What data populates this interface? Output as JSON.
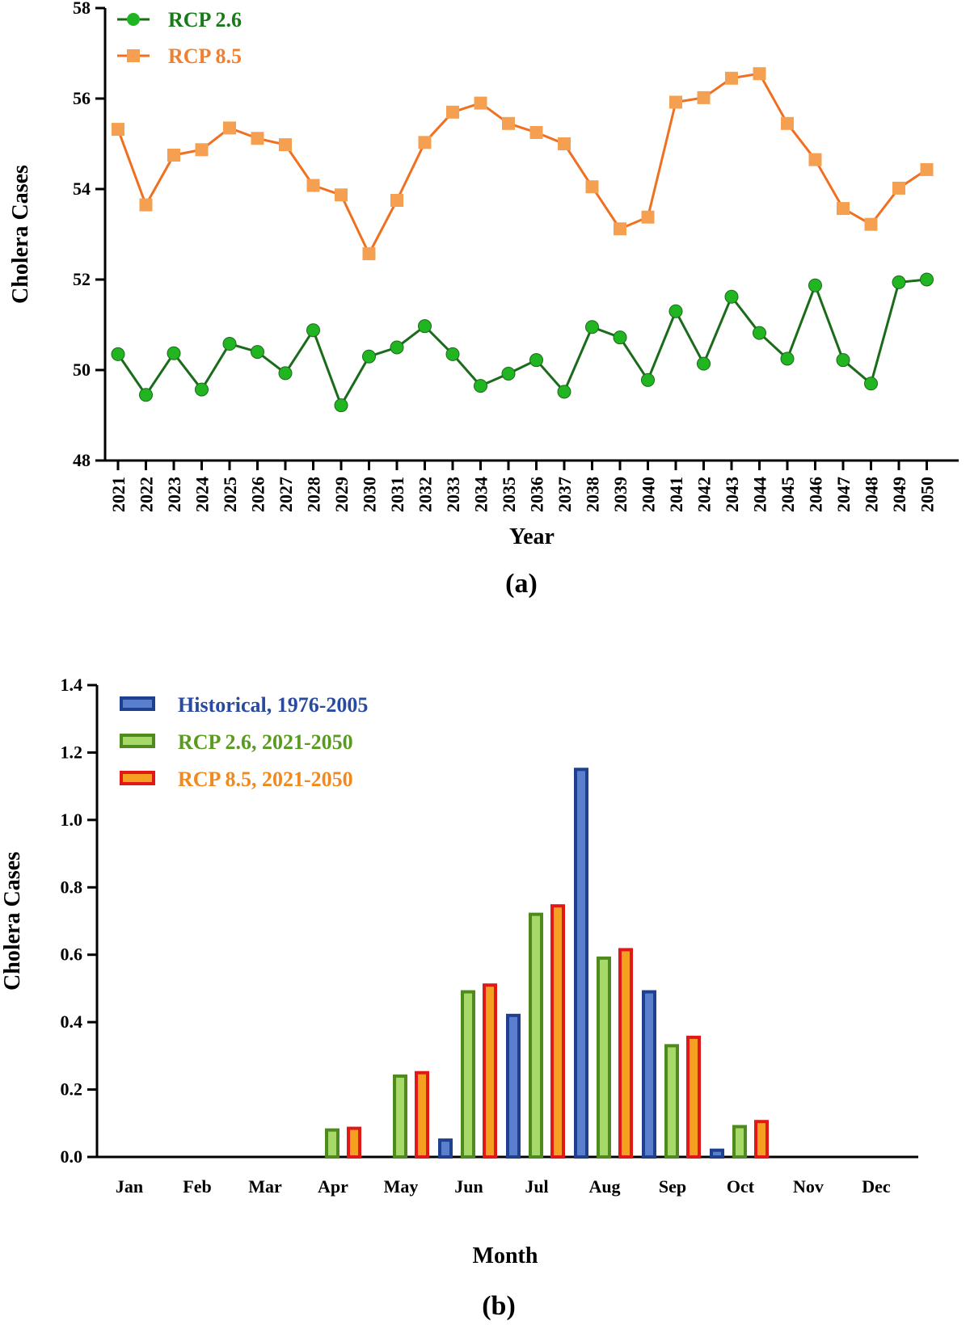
{
  "chart_data": [
    {
      "type": "line",
      "xlabel": "Year",
      "ylabel": "Cholera Cases",
      "ylim": [
        48,
        58
      ],
      "yticks": [
        "48",
        "50",
        "52",
        "54",
        "56",
        "58"
      ],
      "x": [
        2021,
        2022,
        2023,
        2024,
        2025,
        2026,
        2027,
        2028,
        2029,
        2030,
        2031,
        2032,
        2033,
        2034,
        2035,
        2036,
        2037,
        2038,
        2039,
        2040,
        2041,
        2042,
        2043,
        2044,
        2045,
        2046,
        2047,
        2048,
        2049,
        2050
      ],
      "series": [
        {
          "name": "RCP 2.6",
          "color": "#1a6b1a",
          "marker_color": "#22b522",
          "legend_text_color": "#1a7a1a",
          "marker": "circle",
          "values": [
            50.35,
            49.45,
            50.37,
            49.57,
            50.58,
            50.4,
            49.93,
            50.88,
            49.22,
            50.3,
            50.5,
            50.97,
            50.35,
            49.65,
            49.92,
            50.22,
            49.52,
            50.95,
            50.72,
            49.78,
            51.3,
            50.14,
            51.62,
            50.82,
            50.25,
            51.87,
            50.22,
            49.7,
            51.94,
            52.0
          ]
        },
        {
          "name": "RCP 8.5",
          "color": "#f07020",
          "marker_color": "#f5a050",
          "legend_text_color": "#f08030",
          "marker": "square",
          "values": [
            55.32,
            53.65,
            54.75,
            54.87,
            55.35,
            55.12,
            54.98,
            54.08,
            53.87,
            52.57,
            53.75,
            55.03,
            55.7,
            55.9,
            55.45,
            55.25,
            55.0,
            54.05,
            53.12,
            53.38,
            55.92,
            56.02,
            56.45,
            56.55,
            55.45,
            54.65,
            53.57,
            53.22,
            54.02,
            54.43
          ]
        }
      ],
      "panel_label": "(a)"
    },
    {
      "type": "bar",
      "xlabel": "Month",
      "ylabel": "Cholera Cases",
      "ylim": [
        0,
        1.4
      ],
      "yticks": [
        "0.0",
        "0.2",
        "0.4",
        "0.6",
        "0.8",
        "1.0",
        "1.2",
        "1.4"
      ],
      "categories": [
        "Jan",
        "Feb",
        "Mar",
        "Apr",
        "May",
        "Jun",
        "Jul",
        "Aug",
        "Sep",
        "Oct",
        "Nov",
        "Dec"
      ],
      "series": [
        {
          "name": "Historical, 1976-2005",
          "outer_color": "#1f3f8f",
          "inner_color": "#5a7fcf",
          "legend_text_color": "#2a4aa0",
          "values": [
            0,
            0,
            0,
            0,
            0,
            0.05,
            0.42,
            1.15,
            0.49,
            0.02,
            0,
            0
          ]
        },
        {
          "name": "RCP 2.6, 2021-2050",
          "outer_color": "#4e8a1e",
          "inner_color": "#a6d86a",
          "legend_text_color": "#5a9a20",
          "values": [
            0,
            0,
            0,
            0.08,
            0.24,
            0.49,
            0.72,
            0.59,
            0.33,
            0.09,
            0,
            0
          ]
        },
        {
          "name": "RCP 8.5, 2021-2050",
          "outer_color": "#e01818",
          "inner_color": "#f5a020",
          "legend_text_color": "#f08a20",
          "values": [
            0,
            0,
            0,
            0.085,
            0.25,
            0.51,
            0.745,
            0.615,
            0.355,
            0.105,
            0,
            0
          ]
        }
      ],
      "panel_label": "(b)"
    }
  ]
}
